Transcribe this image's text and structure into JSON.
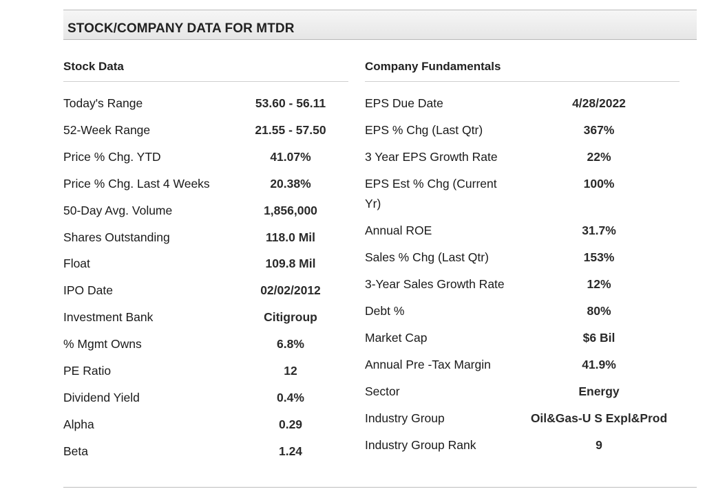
{
  "title": "STOCK/COMPANY DATA FOR MTDR",
  "stock_data": {
    "heading": "Stock Data",
    "rows": [
      {
        "label": "Today's Range",
        "value": "53.60  -  56.11"
      },
      {
        "label": "52-Week Range",
        "value": "21.55  -  57.50"
      },
      {
        "label": "Price % Chg. YTD",
        "value": "41.07%"
      },
      {
        "label": "Price % Chg. Last 4 Weeks",
        "value": "20.38%"
      },
      {
        "label": "50-Day Avg. Volume",
        "value": "1,856,000"
      },
      {
        "label": "Shares Outstanding",
        "value": "118.0 Mil"
      },
      {
        "label": "Float",
        "value": "109.8 Mil"
      },
      {
        "label": "IPO Date",
        "value": "02/02/2012"
      },
      {
        "label": "Investment Bank",
        "value": "Citigroup"
      },
      {
        "label": "% Mgmt Owns",
        "value": "6.8%"
      },
      {
        "label": "PE Ratio",
        "value": "12"
      },
      {
        "label": "Dividend Yield",
        "value": "0.4%"
      },
      {
        "label": "Alpha",
        "value": "0.29"
      },
      {
        "label": "Beta",
        "value": "1.24"
      }
    ]
  },
  "company_fundamentals": {
    "heading": "Company Fundamentals",
    "rows": [
      {
        "label": "EPS Due Date",
        "value": "4/28/2022"
      },
      {
        "label": "EPS % Chg (Last Qtr)",
        "value": "367%"
      },
      {
        "label": "3 Year EPS Growth Rate",
        "value": "22%"
      },
      {
        "label": "EPS Est % Chg (Current",
        "label_line2": "Yr)",
        "value": "100%"
      },
      {
        "label": "Annual ROE",
        "value": "31.7%"
      },
      {
        "label": "Sales % Chg (Last Qtr)",
        "value": "153%"
      },
      {
        "label": "3-Year Sales Growth Rate",
        "value": "12%"
      },
      {
        "label": "Debt %",
        "value": "80%"
      },
      {
        "label": "Market Cap",
        "value": "$6 Bil"
      },
      {
        "label": "Annual Pre -Tax Margin",
        "value": "41.9%"
      },
      {
        "label": "Sector",
        "value": "Energy"
      },
      {
        "label": "Industry Group",
        "value": "Oil&Gas-U S Expl&Prod"
      },
      {
        "label": "Industry Group Rank",
        "value": "9"
      }
    ]
  }
}
